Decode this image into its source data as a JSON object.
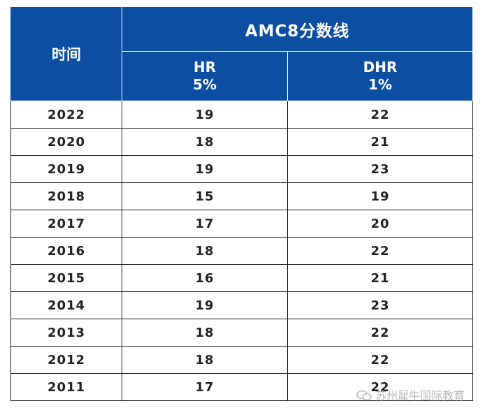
{
  "table": {
    "header": {
      "time_label": "时间",
      "group_label": "AMC8分数线",
      "col_hr_line1": "HR",
      "col_hr_line2": "5%",
      "col_dhr_line1": "DHR",
      "col_dhr_line2": "1%"
    },
    "rows": [
      {
        "year": "2022",
        "hr": "19",
        "dhr": "22"
      },
      {
        "year": "2020",
        "hr": "18",
        "dhr": "21"
      },
      {
        "year": "2019",
        "hr": "19",
        "dhr": "23"
      },
      {
        "year": "2018",
        "hr": "15",
        "dhr": "19"
      },
      {
        "year": "2017",
        "hr": "17",
        "dhr": "20"
      },
      {
        "year": "2016",
        "hr": "18",
        "dhr": "22"
      },
      {
        "year": "2015",
        "hr": "16",
        "dhr": "21"
      },
      {
        "year": "2014",
        "hr": "19",
        "dhr": "23"
      },
      {
        "year": "2013",
        "hr": "18",
        "dhr": "22"
      },
      {
        "year": "2012",
        "hr": "18",
        "dhr": "22"
      },
      {
        "year": "2011",
        "hr": "17",
        "dhr": "22"
      }
    ]
  },
  "watermark": {
    "icon": "wechat-icon",
    "text": "苏州犀牛国际教育"
  }
}
